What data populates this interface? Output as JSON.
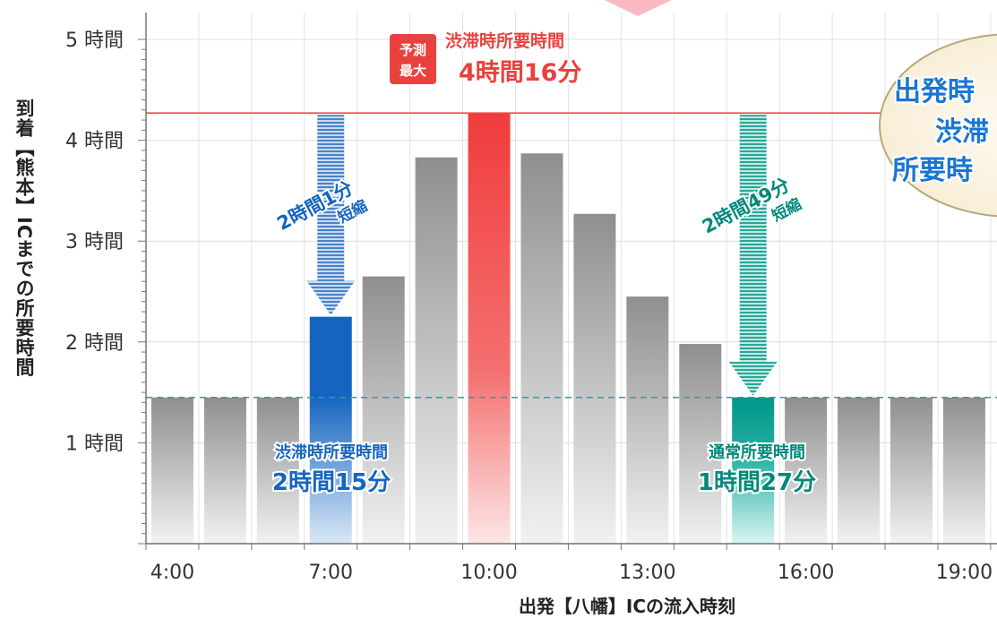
{
  "chart_data": {
    "type": "bar",
    "xlabel": "出発【八幡】ICの流入時刻",
    "ylabel": "到着【熊本】ICまでの所要時間",
    "y_tick_labels": [
      "1 時間",
      "2 時間",
      "3 時間",
      "4 時間",
      "5 時間"
    ],
    "ylim": [
      0,
      5.2
    ],
    "x_tick_labels": [
      "4:00",
      "7:00",
      "10:00",
      "13:00",
      "16:00",
      "19:00"
    ],
    "categories": [
      "4:00",
      "5:00",
      "6:00",
      "7:00",
      "8:00",
      "9:00",
      "10:00",
      "11:00",
      "12:00",
      "13:00",
      "14:00",
      "15:00",
      "16:00",
      "17:00",
      "18:00",
      "19:00"
    ],
    "values": [
      1.45,
      1.45,
      1.45,
      2.25,
      2.65,
      3.83,
      4.27,
      3.87,
      3.27,
      2.45,
      1.98,
      1.45,
      1.45,
      1.45,
      1.45,
      1.45
    ],
    "highlights": {
      "peak_index": 6,
      "blue_index": 3,
      "teal_index": 11
    },
    "reference_lines": {
      "max_value": 4.27,
      "normal_value": 1.45
    },
    "colors": {
      "gray": "#9a9a9a",
      "red": "#f24b4b",
      "blue": "#1565c0",
      "teal": "#009688",
      "dashed": "#2aa198"
    },
    "grid": true
  },
  "annotations": {
    "peak_badge_1": "予測",
    "peak_badge_2": "最大",
    "peak_title": "渋滞時所要時間",
    "peak_value": "4時間16分",
    "blue_title": "渋滞時所要時間",
    "blue_value": "2時間15分",
    "teal_title": "通常所要時間",
    "teal_value": "1時間27分",
    "reduce_blue_1": "2時間1分",
    "reduce_blue_2": "短縮",
    "reduce_teal_1": "2時間49分",
    "reduce_teal_2": "短縮",
    "bubble_line1": "出発時",
    "bubble_line2": "渋滞",
    "bubble_line3": "所要時"
  }
}
